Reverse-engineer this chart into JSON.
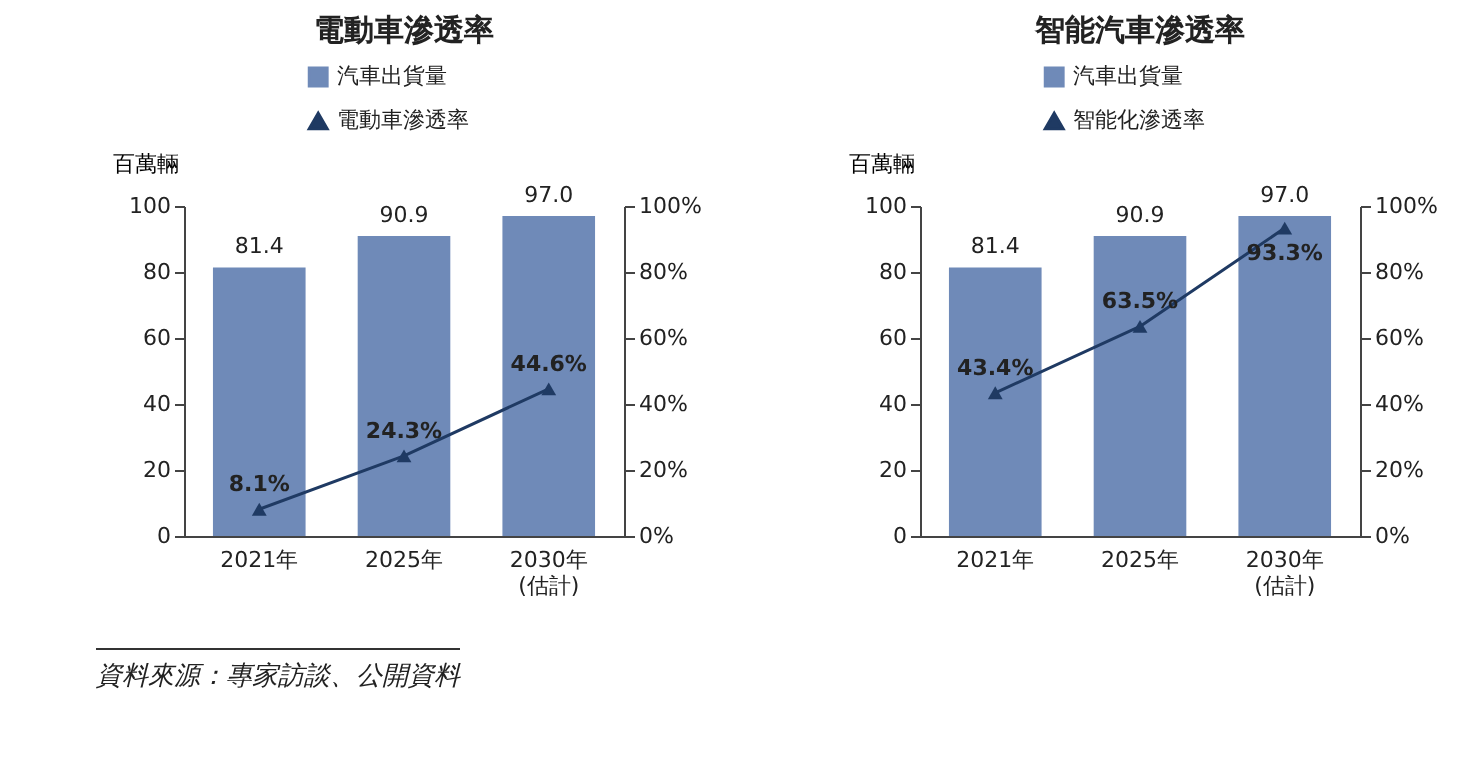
{
  "chart_data": [
    {
      "type": "bar",
      "title": "電動車滲透率",
      "ylabel": "百萬輛",
      "categories": [
        "2021年",
        "2025年",
        "2030年\n(估計)"
      ],
      "series": [
        {
          "name": "汽車出貨量",
          "color": "#6f8ab8",
          "values": [
            81.4,
            90.9,
            97.0
          ],
          "value_labels": [
            "81.4",
            "90.9",
            "97.0"
          ]
        },
        {
          "name": "電動車滲透率",
          "type": "line",
          "axis": "y2",
          "color": "#1f3a63",
          "values": [
            8.1,
            24.3,
            44.6
          ],
          "value_labels": [
            "8.1%",
            "24.3%",
            "44.6%"
          ]
        }
      ],
      "ylim": [
        0,
        100
      ],
      "yticks": [
        0,
        20,
        40,
        60,
        80,
        100
      ],
      "y2lim": [
        0,
        100
      ],
      "y2ticks": [
        {
          "value": 0,
          "label": "0%"
        },
        {
          "value": 20,
          "label": "20%"
        },
        {
          "value": 40,
          "label": "40%"
        },
        {
          "value": 60,
          "label": "60%"
        },
        {
          "value": 80,
          "label": "80%"
        },
        {
          "value": 100,
          "label": "100%"
        }
      ],
      "legend": "top",
      "marker": "triangle",
      "annotations": [
        "資料來源：專家訪談、公開資料"
      ]
    },
    {
      "type": "bar",
      "title": "智能汽車滲透率",
      "ylabel": "百萬輛",
      "categories": [
        "2021年",
        "2025年",
        "2030年\n(估計)"
      ],
      "series": [
        {
          "name": "汽車出貨量",
          "color": "#6f8ab8",
          "values": [
            81.4,
            90.9,
            97.0
          ],
          "value_labels": [
            "81.4",
            "90.9",
            "97.0"
          ]
        },
        {
          "name": "智能化滲透率",
          "type": "line",
          "axis": "y2",
          "color": "#1f3a63",
          "values": [
            43.4,
            63.5,
            93.3
          ],
          "value_labels": [
            "43.4%",
            "63.5%",
            "93.3%"
          ]
        }
      ],
      "ylim": [
        0,
        100
      ],
      "yticks": [
        0,
        20,
        40,
        60,
        80,
        100
      ],
      "y2lim": [
        0,
        100
      ],
      "y2ticks": [
        {
          "value": 0,
          "label": "0%"
        },
        {
          "value": 20,
          "label": "20%"
        },
        {
          "value": 40,
          "label": "40%"
        },
        {
          "value": 60,
          "label": "60%"
        },
        {
          "value": 80,
          "label": "80%"
        },
        {
          "value": 100,
          "label": "100%"
        }
      ],
      "legend": "top",
      "marker": "triangle"
    }
  ]
}
